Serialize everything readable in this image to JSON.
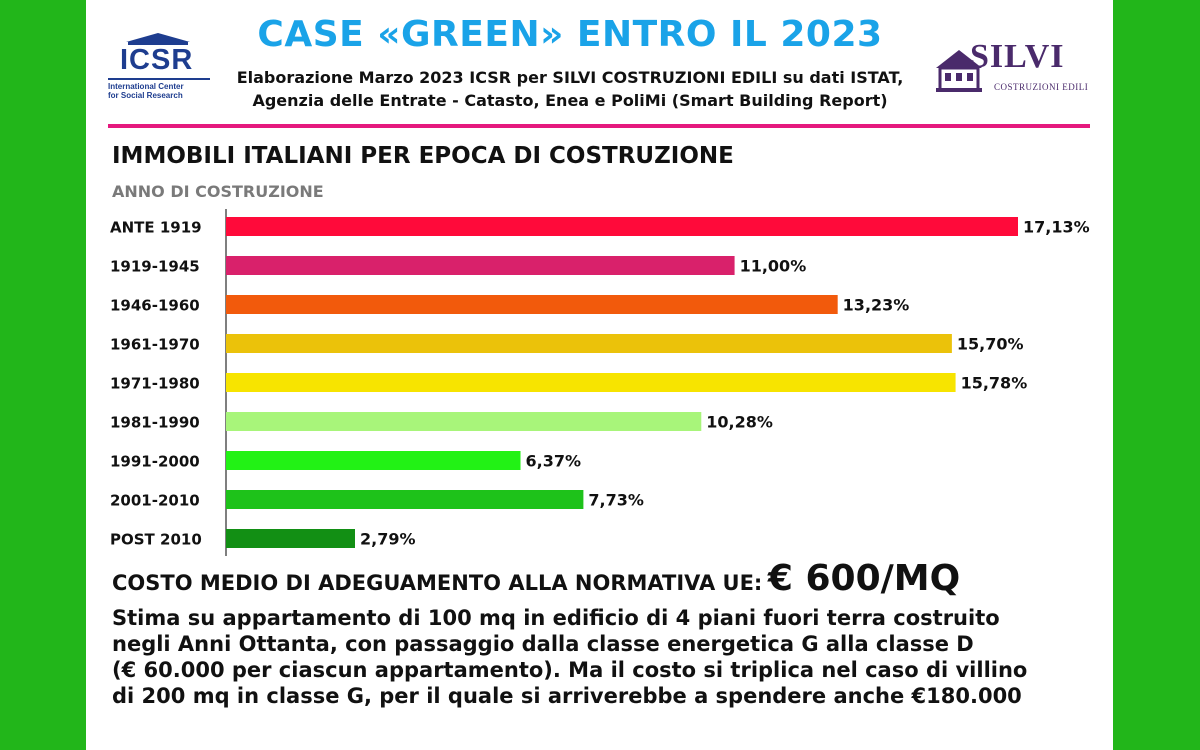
{
  "header": {
    "title": "CASE «GREEN» ENTRO IL 2023",
    "subtitle_line1": "Elaborazione Marzo 2023 ICSR per SILVI COSTRUZIONI EDILI su dati ISTAT,",
    "subtitle_line2": "Agenzia delle Entrate - Catasto, Enea e PoliMi (Smart Building Report)"
  },
  "logos": {
    "left": {
      "mark": "ICSR",
      "line1": "International Center",
      "line2": "for Social Research"
    },
    "right": {
      "mark": "SILVI",
      "tagline": "COSTRUZIONI EDILI"
    }
  },
  "colors": {
    "accent_title": "#1aa3e8",
    "divider": "#e5197e",
    "background": "#22b61a"
  },
  "chart_data": {
    "type": "bar",
    "orientation": "horizontal",
    "title": "IMMOBILI ITALIANI PER EPOCA DI COSTRUZIONE",
    "ylabel": "ANNO DI COSTRUZIONE",
    "xlabel": "",
    "categories": [
      "ANTE 1919",
      "1919-1945",
      "1946-1960",
      "1961-1970",
      "1971-1980",
      "1981-1990",
      "1991-2000",
      "2001-2010",
      "POST 2010"
    ],
    "values": [
      17.13,
      11.0,
      13.23,
      15.7,
      15.78,
      10.28,
      6.37,
      7.73,
      2.79
    ],
    "value_labels": [
      "17,13%",
      "11,00%",
      "13,23%",
      "15,70%",
      "15,78%",
      "10,28%",
      "6,37%",
      "7,73%",
      "2,79%"
    ],
    "colors": [
      "#ff0a3a",
      "#d9216b",
      "#f25a0c",
      "#ebc20a",
      "#f7e400",
      "#a8f57a",
      "#22f215",
      "#1ec21a",
      "#128f14"
    ],
    "xlim": [
      0,
      17.13
    ],
    "grid": false,
    "legend": "none"
  },
  "footer": {
    "cost_lead": "COSTO MEDIO DI ADEGUAMENTO ALLA NORMATIVA UE:",
    "cost_value": "€ 600/MQ",
    "paragraph_lines": [
      "Stima su appartamento di 100 mq in edificio di 4 piani fuori terra costruito",
      "negli Anni Ottanta, con passaggio dalla classe energetica G alla classe D",
      "(€ 60.000 per ciascun appartamento). Ma il costo si triplica nel caso di villino",
      "di 200 mq in classe G, per il quale si arriverebbe a spendere anche €180.000"
    ]
  }
}
